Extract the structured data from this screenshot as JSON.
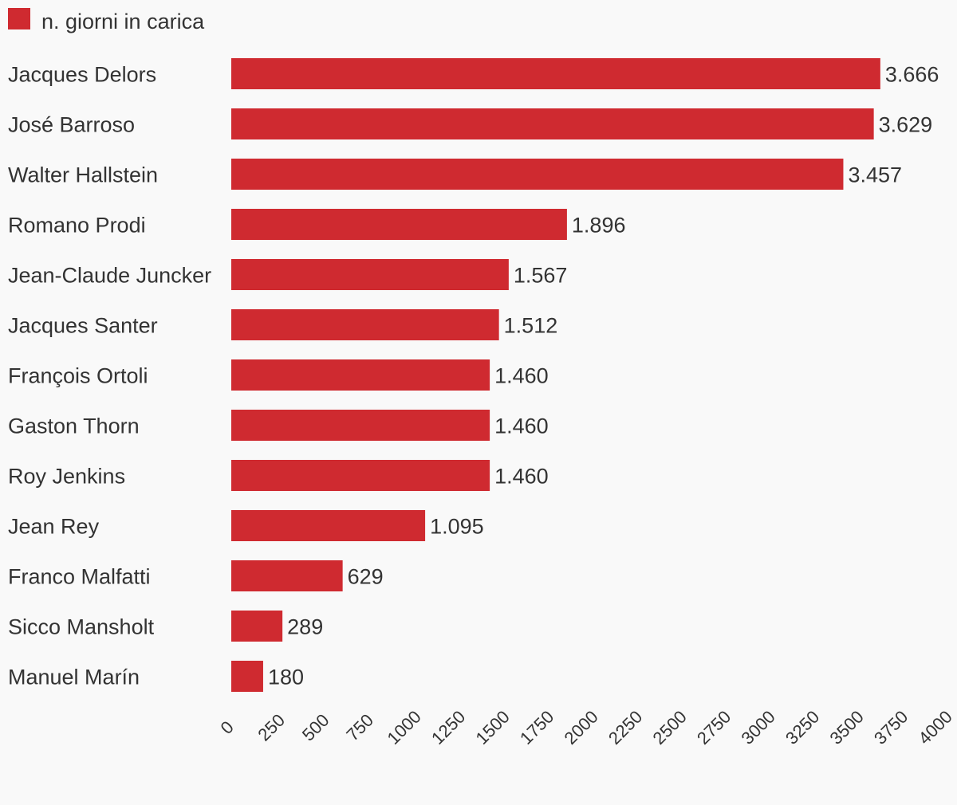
{
  "chart_data": {
    "type": "bar",
    "orientation": "horizontal",
    "legend": {
      "position": "top-left",
      "entries": [
        {
          "label": "n. giorni in carica",
          "color": "#cf2a30"
        }
      ]
    },
    "categories": [
      "Jacques Delors",
      "José Barroso",
      "Walter Hallstein",
      "Romano Prodi",
      "Jean-Claude Juncker",
      "Jacques Santer",
      "François Ortoli",
      "Gaston Thorn",
      "Roy Jenkins",
      "Jean Rey",
      "Franco Malfatti",
      "Sicco Mansholt",
      "Manuel Marín"
    ],
    "series": [
      {
        "name": "n. giorni in carica",
        "color": "#cf2a30",
        "values": [
          3666,
          3629,
          3457,
          1896,
          1567,
          1512,
          1460,
          1460,
          1460,
          1095,
          629,
          289,
          180
        ],
        "value_labels": [
          "3.666",
          "3.629",
          "3.457",
          "1.896",
          "1.567",
          "1.512",
          "1.460",
          "1.460",
          "1.460",
          "1.095",
          "629",
          "289",
          "180"
        ]
      }
    ],
    "x_axis": {
      "min": 0,
      "max": 4000,
      "ticks": [
        "0",
        "250",
        "500",
        "750",
        "1000",
        "1250",
        "1500",
        "1750",
        "2000",
        "2250",
        "2500",
        "2750",
        "3000",
        "3250",
        "3500",
        "3750",
        "4000"
      ],
      "tick_label_rotation_deg": -45
    },
    "grid": false,
    "background": "#f9f9f9",
    "text_color": "#333333"
  }
}
